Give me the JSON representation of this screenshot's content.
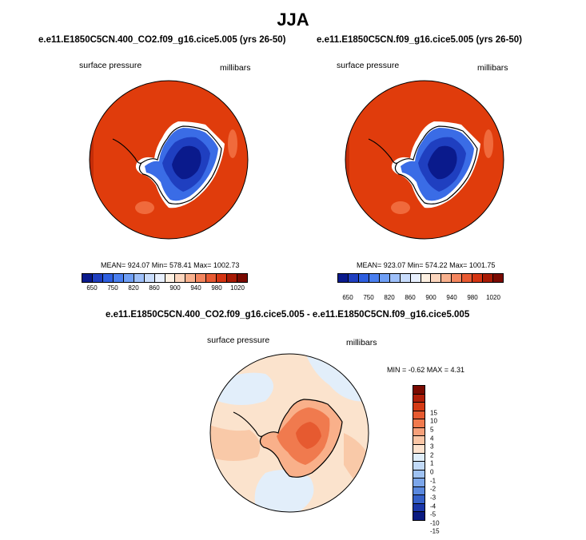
{
  "page": {
    "title": "JJA"
  },
  "chart_data": [
    {
      "type": "heatmap",
      "panel": "top-left",
      "title": "e.e11.E1850C5CN.400_CO2.f09_g16.cice5.005 (yrs 26-50)",
      "left_label": "surface pressure",
      "right_label": "millibars",
      "stats": "MEAN= 924.07   Min= 578.41   Max= 1002.73",
      "colorbar": {
        "orientation": "horizontal",
        "tick_labels": [
          "650",
          "750",
          "820",
          "860",
          "900",
          "940",
          "980",
          "1020"
        ],
        "colors": [
          "#0a1a8c",
          "#1f3fc0",
          "#2e5fe0",
          "#4a7ff0",
          "#6f9ff6",
          "#9ec0fa",
          "#c8dcfc",
          "#e8f0fe",
          "#fdf0e2",
          "#fcd6be",
          "#f9b18e",
          "#f3855e",
          "#e85a32",
          "#d43412",
          "#a81a04",
          "#7a0a00"
        ]
      }
    },
    {
      "type": "heatmap",
      "panel": "top-right",
      "title": "e.e11.E1850C5CN.f09_g16.cice5.005 (yrs 26-50)",
      "left_label": "surface pressure",
      "right_label": "millibars",
      "stats": "MEAN= 923.07   Min= 574.22   Max= 1001.75",
      "colorbar": {
        "orientation": "horizontal",
        "tick_labels": [
          "650",
          "750",
          "820",
          "860",
          "900",
          "940",
          "980",
          "1020"
        ],
        "colors": [
          "#0a1a8c",
          "#1f3fc0",
          "#2e5fe0",
          "#4a7ff0",
          "#6f9ff6",
          "#9ec0fa",
          "#c8dcfc",
          "#e8f0fe",
          "#fdf0e2",
          "#fcd6be",
          "#f9b18e",
          "#f3855e",
          "#e85a32",
          "#d43412",
          "#a81a04",
          "#7a0a00"
        ]
      }
    },
    {
      "type": "heatmap",
      "panel": "bottom",
      "title": "e.e11.E1850C5CN.400_CO2.f09_g16.cice5.005 - e.e11.E1850C5CN.f09_g16.cice5.005",
      "left_label": "surface pressure",
      "right_label": "millibars",
      "stats": "MIN =  -0.62 MAX =   4.31",
      "colorbar": {
        "orientation": "vertical",
        "tick_labels": [
          "15",
          "10",
          "5",
          "4",
          "3",
          "2",
          "1",
          "0",
          "-1",
          "-2",
          "-3",
          "-4",
          "-5",
          "-10",
          "-15"
        ],
        "colors": [
          "#7a0a00",
          "#b01e08",
          "#d43a14",
          "#e65a30",
          "#f07a4e",
          "#f6a07a",
          "#fac6a6",
          "#fde3cf",
          "#e0eefa",
          "#c2daf7",
          "#9fc2f2",
          "#7ca6ea",
          "#5a88de",
          "#3560c8",
          "#1a36a8",
          "#0a1a80"
        ]
      }
    }
  ]
}
